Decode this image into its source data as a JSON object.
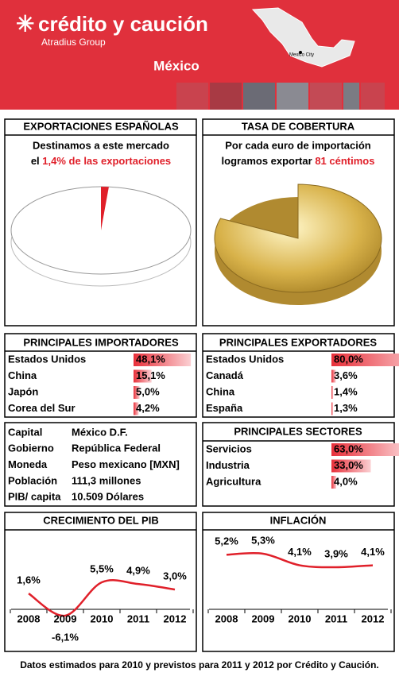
{
  "header": {
    "brand": "crédito y caución",
    "group": "Atradius Group",
    "country": "México",
    "map_label": "Mexico City"
  },
  "exports": {
    "title": "EXPORTACIONES ESPAÑOLAS",
    "line1": "Destinamos a este mercado",
    "line2_start": "el",
    "line2_highlight": "1,4% de las exportaciones",
    "value": 1.4
  },
  "coverage": {
    "title": "TASA DE COBERTURA",
    "line1": "Por cada euro de importación",
    "line2_start": "logramos exportar",
    "line2_highlight": "81 céntimos",
    "value": 81
  },
  "importers": {
    "title": "PRINCIPALES IMPORTADORES",
    "rows": [
      {
        "name": "Estados Unidos",
        "value": 48.1,
        "label": "48,1%"
      },
      {
        "name": "China",
        "value": 15.1,
        "label": "15,1%"
      },
      {
        "name": "Japón",
        "value": 5.0,
        "label": "5,0%"
      },
      {
        "name": "Corea del Sur",
        "value": 4.2,
        "label": "4,2%"
      }
    ]
  },
  "exporters": {
    "title": "PRINCIPALES EXPORTADORES",
    "rows": [
      {
        "name": "Estados Unidos",
        "value": 80.0,
        "label": "80,0%"
      },
      {
        "name": "Canadá",
        "value": 3.6,
        "label": "3,6%"
      },
      {
        "name": "China",
        "value": 1.4,
        "label": "1,4%"
      },
      {
        "name": "España",
        "value": 1.3,
        "label": "1,3%"
      }
    ]
  },
  "info": {
    "rows": [
      [
        "Capital",
        "México D.F."
      ],
      [
        "Gobierno",
        "República Federal"
      ],
      [
        "Moneda",
        "Peso mexicano [MXN]"
      ],
      [
        "Población",
        "111,3 millones"
      ],
      [
        "PIB/ capita",
        "10.509 Dólares"
      ]
    ]
  },
  "sectors": {
    "title": "PRINCIPALES SECTORES",
    "rows": [
      {
        "name": "Servicios",
        "value": 63.0,
        "label": "63,0%"
      },
      {
        "name": "Industria",
        "value": 33.0,
        "label": "33,0%"
      },
      {
        "name": "Agricultura",
        "value": 4.0,
        "label": "4,0%"
      }
    ]
  },
  "gdp": {
    "type": "line",
    "title": "CRECIMIENTO DEL PIB",
    "categories": [
      "2008",
      "2009",
      "2010",
      "2011",
      "2012"
    ],
    "values": [
      1.6,
      -6.1,
      5.5,
      4.9,
      3.0
    ],
    "value_labels": [
      "1,6%",
      "-6,1%",
      "5,5%",
      "4,9%",
      "3,0%"
    ],
    "color": "#e0202a"
  },
  "inflation": {
    "type": "line",
    "title": "INFLACIÓN",
    "categories": [
      "2008",
      "2009",
      "2010",
      "2011",
      "2012"
    ],
    "values": [
      5.2,
      5.3,
      4.1,
      3.9,
      4.1
    ],
    "value_labels": [
      "5,2%",
      "5,3%",
      "4,1%",
      "3,9%",
      "4,1%"
    ],
    "color": "#e0202a"
  },
  "footer": "Datos estimados para 2010 y previstos para 2011  y 2012 por Crédito y Caución."
}
